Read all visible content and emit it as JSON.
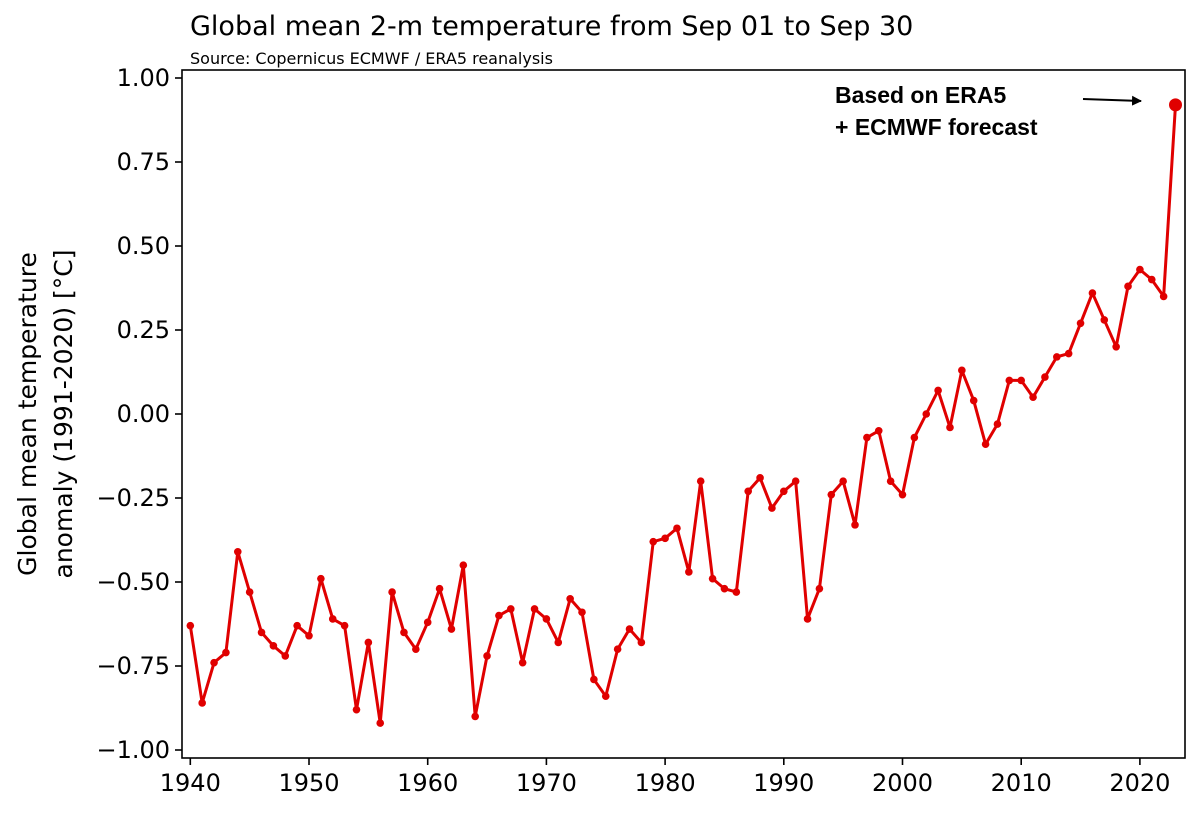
{
  "chart_data": {
    "type": "line",
    "title": "Global mean 2-m temperature from Sep 01 to Sep 30",
    "subtitle": "Source: Copernicus ECMWF / ERA5 reanalysis",
    "xlabel": "",
    "ylabel_line1": "Global mean temperature",
    "ylabel_line2": "anomaly (1991-2020) [°C]",
    "xlim": [
      1939.3,
      2023.8
    ],
    "ylim": [
      -1.0,
      1.0
    ],
    "x_ticks": [
      1940,
      1950,
      1960,
      1970,
      1980,
      1990,
      2000,
      2010,
      2020
    ],
    "x_tick_labels": [
      "1940",
      "1950",
      "1960",
      "1970",
      "1980",
      "1990",
      "2000",
      "2010",
      "2020"
    ],
    "y_ticks": [
      -1.0,
      -0.75,
      -0.5,
      -0.25,
      0.0,
      0.25,
      0.5,
      0.75,
      1.0
    ],
    "y_tick_labels": [
      "−1.00",
      "−0.75",
      "−0.50",
      "−0.25",
      "0.00",
      "0.25",
      "0.50",
      "0.75",
      "1.00"
    ],
    "grid": false,
    "legend": "none",
    "line_color": "#e00000",
    "series": [
      {
        "x": [
          1940,
          1941,
          1942,
          1943,
          1944,
          1945,
          1946,
          1947,
          1948,
          1949,
          1950,
          1951,
          1952,
          1953,
          1954,
          1955,
          1956,
          1957,
          1958,
          1959,
          1960,
          1961,
          1962,
          1963,
          1964,
          1965,
          1966,
          1967,
          1968,
          1969,
          1970,
          1971,
          1972,
          1973,
          1974,
          1975,
          1976,
          1977,
          1978,
          1979,
          1980,
          1981,
          1982,
          1983,
          1984,
          1985,
          1986,
          1987,
          1988,
          1989,
          1990,
          1991,
          1992,
          1993,
          1994,
          1995,
          1996,
          1997,
          1998,
          1999,
          2000,
          2001,
          2002,
          2003,
          2004,
          2005,
          2006,
          2007,
          2008,
          2009,
          2010,
          2011,
          2012,
          2013,
          2014,
          2015,
          2016,
          2017,
          2018,
          2019,
          2020,
          2021,
          2022
        ],
        "values": [
          -0.63,
          -0.86,
          -0.74,
          -0.71,
          -0.41,
          -0.53,
          -0.65,
          -0.69,
          -0.72,
          -0.63,
          -0.66,
          -0.49,
          -0.61,
          -0.63,
          -0.88,
          -0.68,
          -0.92,
          -0.53,
          -0.65,
          -0.7,
          -0.62,
          -0.52,
          -0.64,
          -0.45,
          -0.9,
          -0.72,
          -0.6,
          -0.58,
          -0.74,
          -0.58,
          -0.61,
          -0.68,
          -0.55,
          -0.59,
          -0.79,
          -0.84,
          -0.7,
          -0.64,
          -0.68,
          -0.38,
          -0.37,
          -0.34,
          -0.47,
          -0.2,
          -0.49,
          -0.52,
          -0.53,
          -0.23,
          -0.19,
          -0.28,
          -0.23,
          -0.2,
          -0.61,
          -0.52,
          -0.24,
          -0.2,
          -0.33,
          -0.07,
          -0.05,
          -0.2,
          -0.24,
          -0.07,
          0.0,
          0.07,
          -0.04,
          0.13,
          0.04,
          -0.09,
          -0.03,
          0.1,
          0.1,
          0.05,
          0.11,
          0.17,
          0.18,
          0.27,
          0.36,
          0.28,
          0.2,
          0.38,
          0.43,
          0.4,
          0.35
        ]
      }
    ],
    "forecast_point": {
      "x": 2023,
      "value": 0.92
    },
    "annotation": {
      "line1": "Based on ERA5",
      "line2": "+ ECMWF forecast"
    }
  }
}
